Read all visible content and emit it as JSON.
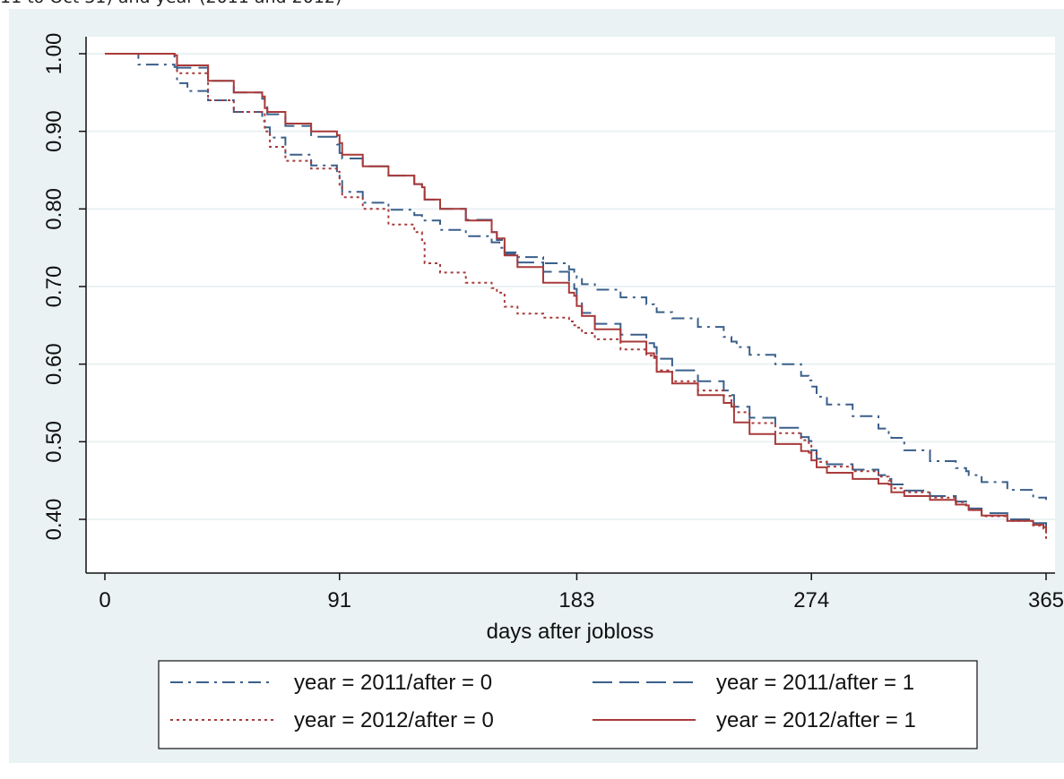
{
  "caption": {
    "text": "11 to Oct 31) and year (2011 and 2012)"
  },
  "colors": {
    "background": "#eaf2f3",
    "plot_area": "#ffffff",
    "grid": "#eaf2f3",
    "blue": "#3a5f8a",
    "red": "#a83a3a"
  },
  "chart_data": {
    "type": "line",
    "title": "",
    "xlabel": "days after jobloss",
    "ylabel": "",
    "xlim": [
      0,
      365
    ],
    "ylim": [
      0.38,
      1.02
    ],
    "xticks": [
      0,
      91,
      183,
      274,
      365
    ],
    "xtick_labels": [
      "0",
      "91",
      "183",
      "274",
      "365"
    ],
    "yticks": [
      0.4,
      0.5,
      0.6,
      0.7,
      0.8,
      0.9,
      1.0
    ],
    "ytick_labels": [
      "0.40",
      "0.50",
      "0.60",
      "0.70",
      "0.80",
      "0.90",
      "1.00"
    ],
    "grid": true,
    "legend_position": "bottom",
    "series": [
      {
        "name": "year = 2011/after = 0",
        "style": "dash-dot",
        "color": "#3a5f8a",
        "x": [
          0,
          10,
          13,
          27,
          28,
          32,
          40,
          50,
          61,
          62,
          64,
          70,
          80,
          90,
          91,
          92,
          100,
          110,
          120,
          123,
          124,
          130,
          140,
          150,
          153,
          155,
          160,
          170,
          180,
          182,
          183,
          185,
          190,
          200,
          210,
          213,
          214,
          220,
          230,
          240,
          243,
          245,
          250,
          260,
          270,
          273,
          274,
          276,
          280,
          290,
          300,
          304,
          305,
          310,
          320,
          330,
          334,
          335,
          340,
          350,
          360,
          365
        ],
        "y": [
          1.0,
          1.0,
          0.986,
          0.983,
          0.962,
          0.952,
          0.94,
          0.925,
          0.913,
          0.905,
          0.892,
          0.87,
          0.856,
          0.846,
          0.838,
          0.822,
          0.808,
          0.799,
          0.792,
          0.789,
          0.785,
          0.773,
          0.765,
          0.757,
          0.75,
          0.744,
          0.738,
          0.73,
          0.722,
          0.719,
          0.711,
          0.703,
          0.696,
          0.686,
          0.677,
          0.672,
          0.667,
          0.659,
          0.648,
          0.635,
          0.629,
          0.622,
          0.612,
          0.6,
          0.585,
          0.579,
          0.571,
          0.558,
          0.548,
          0.533,
          0.517,
          0.511,
          0.505,
          0.489,
          0.475,
          0.466,
          0.462,
          0.457,
          0.448,
          0.438,
          0.428,
          0.425
        ]
      },
      {
        "name": "year = 2011/after = 1",
        "style": "dash",
        "color": "#3a5f8a",
        "x": [
          0,
          27,
          28,
          40,
          50,
          61,
          62,
          63,
          70,
          80,
          90,
          91,
          92,
          100,
          110,
          120,
          123,
          124,
          130,
          140,
          150,
          152,
          155,
          160,
          170,
          180,
          182,
          183,
          185,
          190,
          200,
          210,
          213,
          214,
          220,
          230,
          240,
          243,
          244,
          250,
          260,
          270,
          273,
          274,
          276,
          280,
          290,
          300,
          304,
          305,
          310,
          320,
          330,
          334,
          335,
          340,
          350,
          360,
          365
        ],
        "y": [
          1.0,
          0.995,
          0.982,
          0.965,
          0.95,
          0.942,
          0.935,
          0.922,
          0.907,
          0.893,
          0.883,
          0.872,
          0.865,
          0.855,
          0.843,
          0.832,
          0.826,
          0.812,
          0.8,
          0.786,
          0.77,
          0.76,
          0.742,
          0.731,
          0.719,
          0.706,
          0.697,
          0.68,
          0.666,
          0.652,
          0.638,
          0.627,
          0.622,
          0.607,
          0.592,
          0.578,
          0.566,
          0.56,
          0.545,
          0.531,
          0.518,
          0.506,
          0.501,
          0.489,
          0.478,
          0.471,
          0.464,
          0.457,
          0.452,
          0.445,
          0.437,
          0.43,
          0.423,
          0.419,
          0.414,
          0.408,
          0.4,
          0.395,
          0.39
        ]
      },
      {
        "name": "year = 2012/after = 0",
        "style": "dot",
        "color": "#a83a3a",
        "x": [
          0,
          27,
          28,
          40,
          50,
          61,
          62,
          64,
          70,
          80,
          90,
          91,
          92,
          100,
          110,
          120,
          123,
          124,
          130,
          140,
          150,
          152,
          155,
          160,
          170,
          180,
          182,
          183,
          185,
          190,
          200,
          210,
          213,
          214,
          220,
          230,
          240,
          243,
          244,
          250,
          260,
          270,
          273,
          274,
          276,
          280,
          290,
          300,
          304,
          305,
          310,
          320,
          330,
          334,
          335,
          340,
          350,
          360,
          364,
          365
        ],
        "y": [
          1.0,
          0.995,
          0.975,
          0.94,
          0.925,
          0.922,
          0.9,
          0.88,
          0.862,
          0.852,
          0.848,
          0.83,
          0.815,
          0.8,
          0.78,
          0.77,
          0.76,
          0.73,
          0.718,
          0.705,
          0.698,
          0.692,
          0.674,
          0.665,
          0.66,
          0.655,
          0.65,
          0.647,
          0.64,
          0.632,
          0.619,
          0.611,
          0.608,
          0.592,
          0.578,
          0.566,
          0.559,
          0.552,
          0.538,
          0.524,
          0.511,
          0.502,
          0.497,
          0.485,
          0.474,
          0.468,
          0.462,
          0.455,
          0.45,
          0.44,
          0.435,
          0.428,
          0.422,
          0.418,
          0.412,
          0.404,
          0.398,
          0.392,
          0.388,
          0.375
        ]
      },
      {
        "name": "year = 2012/after = 1",
        "style": "solid",
        "color": "#a83a3a",
        "x": [
          0,
          27,
          28,
          40,
          50,
          61,
          62,
          63,
          70,
          80,
          90,
          91,
          92,
          100,
          110,
          120,
          123,
          124,
          130,
          140,
          150,
          152,
          155,
          160,
          170,
          180,
          182,
          183,
          185,
          190,
          200,
          210,
          213,
          214,
          220,
          230,
          240,
          243,
          244,
          250,
          260,
          270,
          273,
          274,
          276,
          280,
          290,
          300,
          304,
          305,
          310,
          320,
          330,
          334,
          335,
          340,
          350,
          360,
          364,
          365
        ],
        "y": [
          1.0,
          0.998,
          0.985,
          0.965,
          0.95,
          0.945,
          0.93,
          0.925,
          0.91,
          0.9,
          0.895,
          0.885,
          0.87,
          0.855,
          0.843,
          0.832,
          0.828,
          0.812,
          0.8,
          0.785,
          0.77,
          0.762,
          0.74,
          0.725,
          0.705,
          0.692,
          0.688,
          0.675,
          0.662,
          0.645,
          0.629,
          0.614,
          0.61,
          0.59,
          0.575,
          0.56,
          0.55,
          0.545,
          0.525,
          0.51,
          0.497,
          0.488,
          0.486,
          0.476,
          0.467,
          0.46,
          0.452,
          0.446,
          0.445,
          0.435,
          0.43,
          0.425,
          0.419,
          0.418,
          0.412,
          0.405,
          0.398,
          0.393,
          0.39,
          0.382
        ]
      }
    ]
  }
}
